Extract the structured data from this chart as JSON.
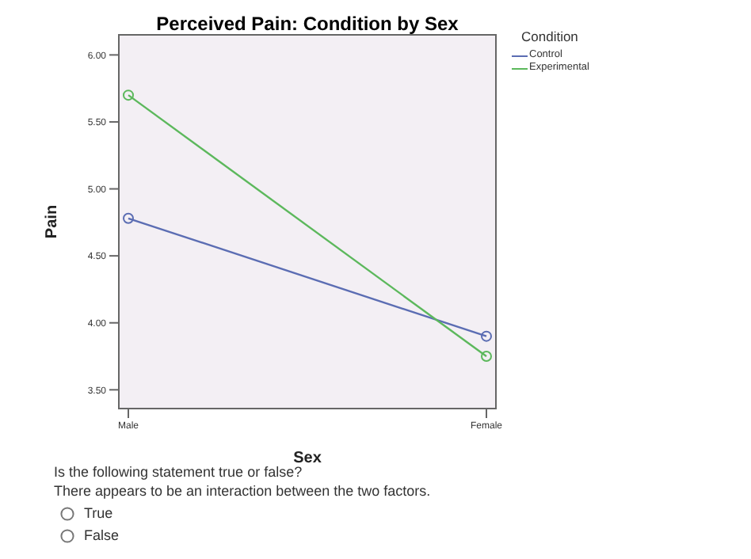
{
  "chart_data": {
    "type": "line",
    "title": "Perceived Pain: Condition by Sex",
    "xlabel": "Sex",
    "ylabel": "Pain",
    "legend_title": "Condition",
    "categories": [
      "Male",
      "Female"
    ],
    "series": [
      {
        "name": "Control",
        "color": "#5b6db3",
        "values": [
          4.78,
          3.9
        ]
      },
      {
        "name": "Experimental",
        "color": "#5cb85c",
        "values": [
          5.7,
          3.75
        ]
      }
    ],
    "ylim": [
      3.36,
      6.15
    ],
    "yticks": [
      {
        "value": 3.5,
        "label": "3.50"
      },
      {
        "value": 4,
        "label": "4.00"
      },
      {
        "value": 4.5,
        "label": "4.50"
      },
      {
        "value": 5,
        "label": "5.00"
      },
      {
        "value": 5.5,
        "label": "5.50"
      },
      {
        "value": 6,
        "label": "6.00"
      }
    ],
    "legend": "top right",
    "marker": "circle",
    "line_style": "solid",
    "annotations": [
      "Is the following statement true or false?",
      "There appears to be an interaction between the two factors.",
      "True",
      "False"
    ]
  }
}
